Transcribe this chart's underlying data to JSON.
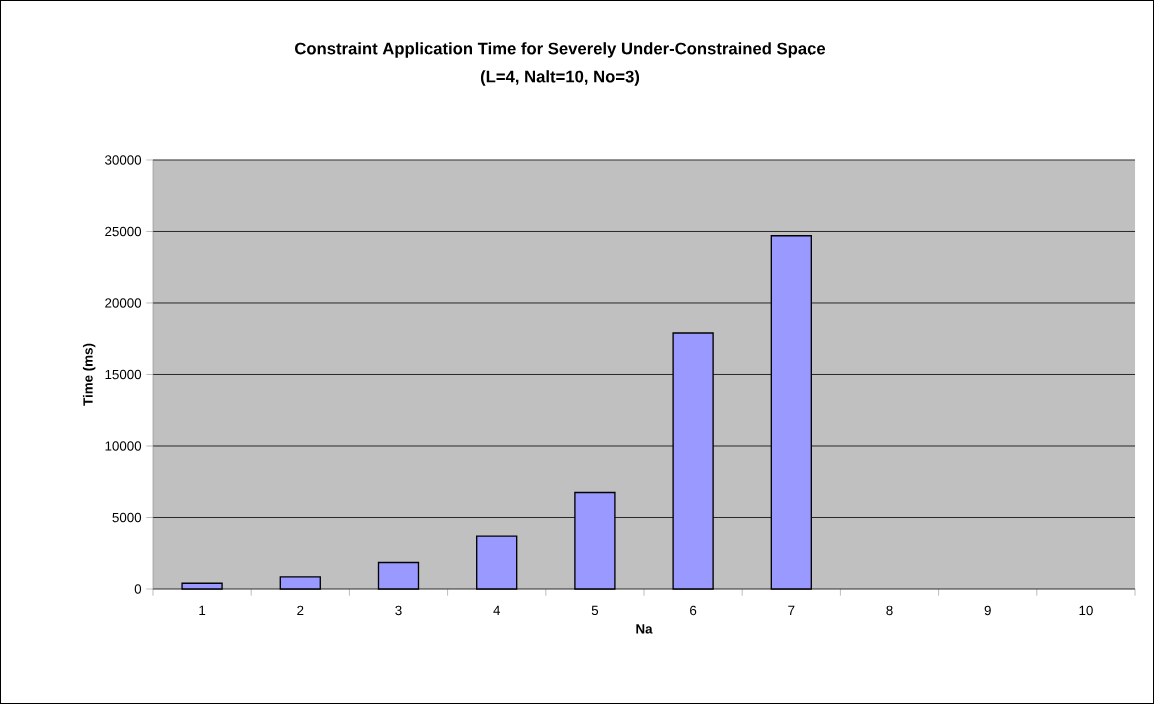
{
  "chart_data": {
    "type": "bar",
    "title": "Constraint Application Time for Severely Under-Constrained Space",
    "subtitle": "(L=4, Nalt=10, No=3)",
    "xlabel": "Na",
    "ylabel": "Time (ms)",
    "categories": [
      "1",
      "2",
      "3",
      "4",
      "5",
      "6",
      "7",
      "8",
      "9",
      "10"
    ],
    "values": [
      400,
      850,
      1850,
      3700,
      6750,
      17900,
      24700,
      null,
      null,
      null
    ],
    "color": "#9999ff",
    "ylim": [
      0,
      30000
    ],
    "yticks": [
      0,
      5000,
      10000,
      15000,
      20000,
      25000,
      30000
    ],
    "grid": "y"
  }
}
